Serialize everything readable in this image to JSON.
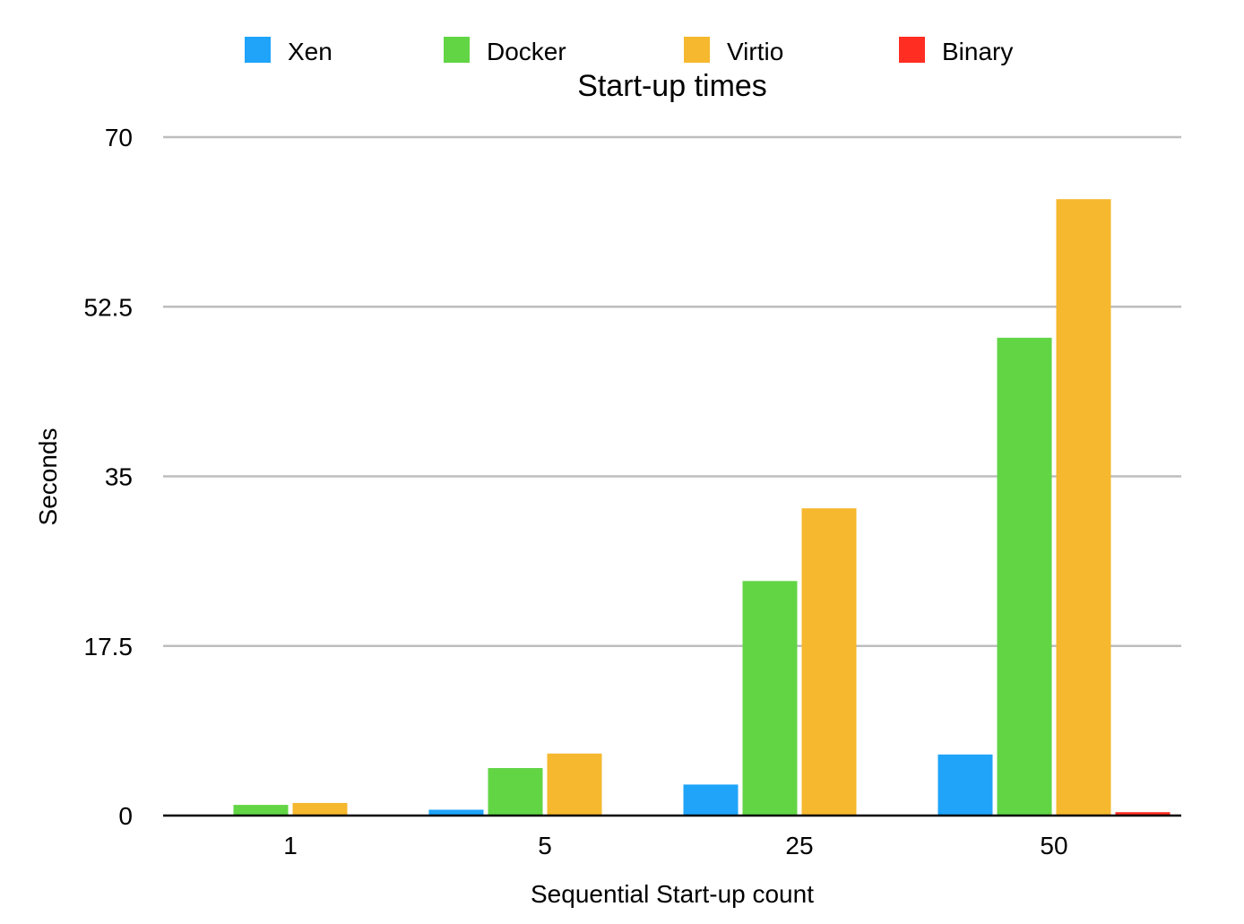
{
  "chart_data": {
    "type": "bar",
    "title": "Start-up times",
    "xlabel": "Sequential Start-up count",
    "ylabel": "Seconds",
    "categories": [
      "1",
      "5",
      "25",
      "50"
    ],
    "yticks": [
      "0",
      "17.5",
      "35",
      "52.5",
      "70"
    ],
    "ylim": [
      0,
      70
    ],
    "grid": true,
    "legend_position": "top",
    "series": [
      {
        "name": "Xen",
        "color": "#1FA4FA",
        "values": [
          0,
          0.6,
          3.2,
          6.3
        ]
      },
      {
        "name": "Docker",
        "color": "#62D545",
        "values": [
          1.1,
          4.9,
          24.2,
          49.3
        ]
      },
      {
        "name": "Virtio",
        "color": "#F5B82E",
        "values": [
          1.3,
          6.4,
          31.7,
          63.6
        ]
      },
      {
        "name": "Binary",
        "color": "#FF2D22",
        "values": [
          0,
          0,
          0,
          0.35
        ]
      }
    ]
  }
}
